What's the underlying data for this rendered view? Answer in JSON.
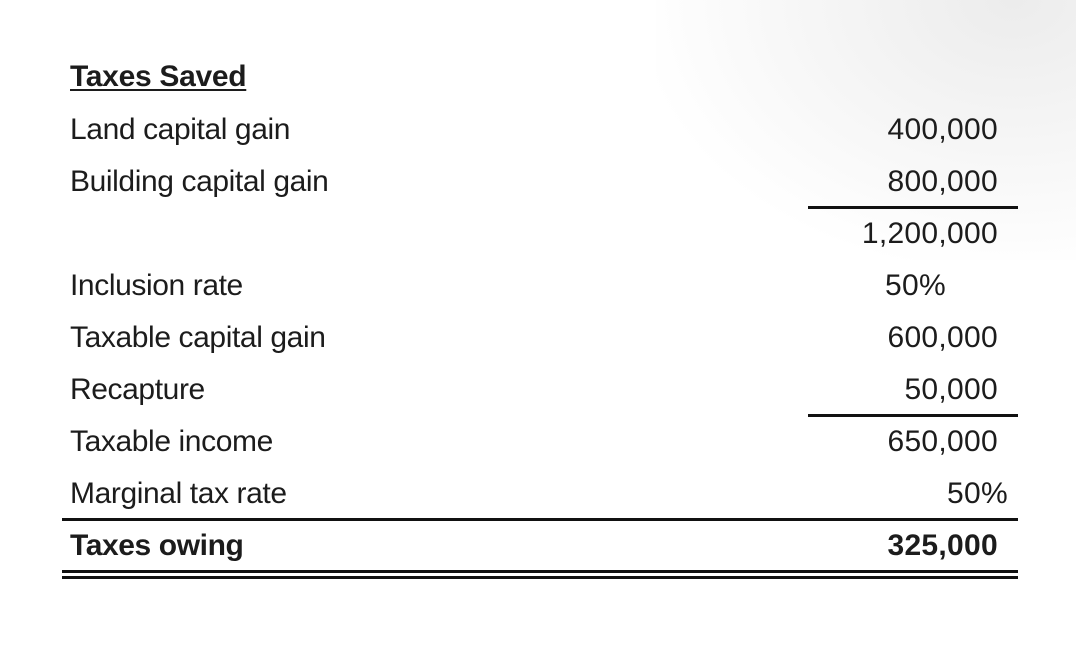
{
  "table": {
    "title": "Taxes Saved",
    "rows": [
      {
        "label": "Land capital gain",
        "value": "400,000"
      },
      {
        "label": "Building capital gain",
        "value": "800,000"
      },
      {
        "label": "",
        "value": "1,200,000"
      },
      {
        "label": "Inclusion rate",
        "value": "50%"
      },
      {
        "label": "Taxable capital gain",
        "value": "600,000"
      },
      {
        "label": "Recapture",
        "value": "50,000"
      },
      {
        "label": "Taxable income",
        "value": "650,000"
      },
      {
        "label": "Marginal tax rate",
        "value": "50%"
      },
      {
        "label": "Taxes owing",
        "value": "325,000"
      }
    ]
  }
}
